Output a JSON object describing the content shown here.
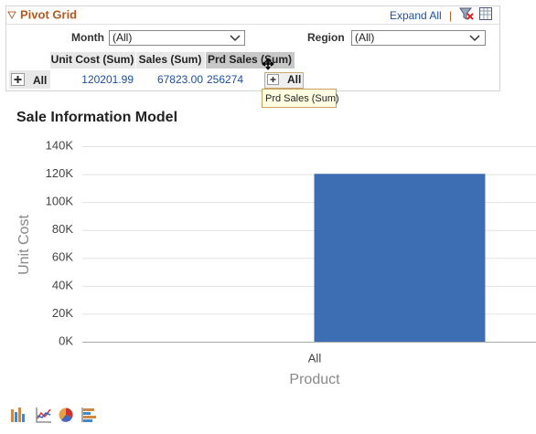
{
  "header": {
    "title": "Pivot Grid",
    "expand": "Expand All",
    "separator": "|"
  },
  "filters": [
    {
      "label": "Month",
      "value": "(All)"
    },
    {
      "label": "Region",
      "value": "(All)"
    }
  ],
  "table": {
    "columns": [
      "Unit Cost (Sum)",
      "Sales (Sum)",
      "Prd Sales (Sum)"
    ],
    "rows": [
      [
        "All",
        "120201.99",
        "67823.00",
        "256274"
      ]
    ],
    "drag_label": "All"
  },
  "tooltip": "Prd Sales (Sum)",
  "chart_data": {
    "type": "bar",
    "title": "Sale Information Model",
    "x_label": "Product",
    "y_label": "Unit Cost",
    "categories": [
      "All"
    ],
    "values": [
      120201.99
    ],
    "color": "#3d6eb4",
    "ylim": [
      0,
      140000
    ],
    "yticks": [
      {
        "value": 0,
        "label": "0K"
      },
      {
        "value": 20000,
        "label": "20K"
      },
      {
        "value": 40000,
        "label": "40K"
      },
      {
        "value": 60000,
        "label": "60K"
      },
      {
        "value": 80000,
        "label": "80K"
      },
      {
        "value": 100000,
        "label": "100K"
      },
      {
        "value": 120000,
        "label": "120K"
      },
      {
        "value": 140000,
        "label": "140K"
      }
    ],
    "grid": true
  }
}
